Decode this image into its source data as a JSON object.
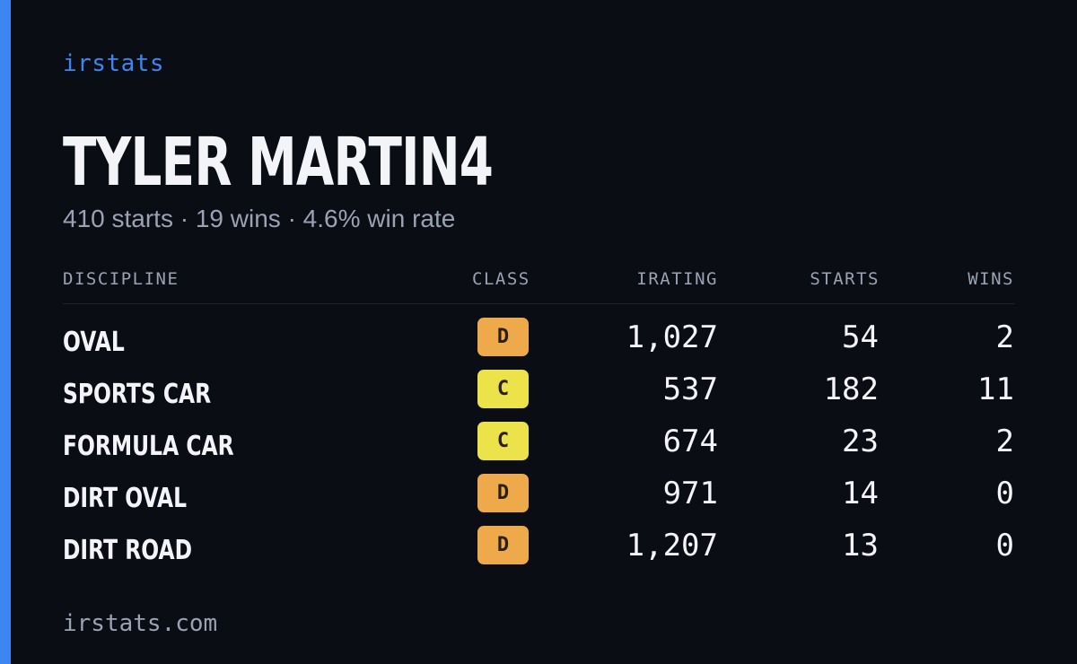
{
  "brand": "irstats",
  "player": {
    "name": "TYLER MARTIN4",
    "starts_text": "410 starts",
    "wins_text": "19 wins",
    "win_rate_text": "4.6% win rate",
    "separator": "·"
  },
  "table": {
    "headers": {
      "discipline": "DISCIPLINE",
      "class": "CLASS",
      "irating": "IRATING",
      "starts": "STARTS",
      "wins": "WINS"
    },
    "rows": [
      {
        "discipline": "OVAL",
        "class": "D",
        "class_color": "#eda94a",
        "irating": "1,027",
        "starts": "54",
        "wins": "2"
      },
      {
        "discipline": "SPORTS CAR",
        "class": "C",
        "class_color": "#ece24a",
        "irating": "537",
        "starts": "182",
        "wins": "11"
      },
      {
        "discipline": "FORMULA CAR",
        "class": "C",
        "class_color": "#ece24a",
        "irating": "674",
        "starts": "23",
        "wins": "2"
      },
      {
        "discipline": "DIRT OVAL",
        "class": "D",
        "class_color": "#eda94a",
        "irating": "971",
        "starts": "14",
        "wins": "0"
      },
      {
        "discipline": "DIRT ROAD",
        "class": "D",
        "class_color": "#eda94a",
        "irating": "1,207",
        "starts": "13",
        "wins": "0"
      }
    ]
  },
  "footer": {
    "url": "irstats.com"
  },
  "colors": {
    "accent": "#3d86f2",
    "background": "#0b0d14",
    "text_primary": "#f3f4f8",
    "text_secondary": "#9aa2b3"
  }
}
